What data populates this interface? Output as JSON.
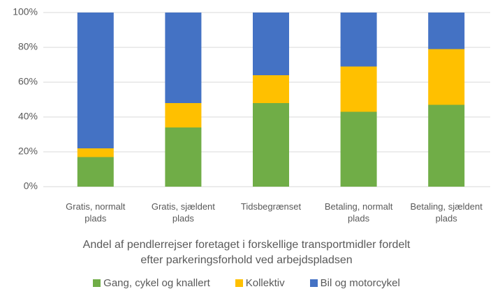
{
  "chart_data": {
    "type": "stacked_bar",
    "title": "Andel af pendlerrejser foretaget i forskellige transportmidler fordelt efter parkeringsforhold ved arbejdspladsen",
    "categories": [
      "Gratis, normalt plads",
      "Gratis, sjældent plads",
      "Tidsbegrænset",
      "Betaling, normalt plads",
      "Betaling, sjældent plads"
    ],
    "series": [
      {
        "name": "Gang, cykel og knallert",
        "color": "#70ad47",
        "values": [
          17,
          34,
          48,
          43,
          47
        ]
      },
      {
        "name": "Kollektiv",
        "color": "#ffc000",
        "values": [
          5,
          14,
          16,
          26,
          32
        ]
      },
      {
        "name": "Bil og motorcykel",
        "color": "#4472c4",
        "values": [
          78,
          52,
          36,
          31,
          21
        ]
      }
    ],
    "ylim": [
      0,
      100
    ],
    "yticks": [
      {
        "value": 0,
        "label": "0%"
      },
      {
        "value": 20,
        "label": "20%"
      },
      {
        "value": 40,
        "label": "40%"
      },
      {
        "value": 60,
        "label": "60%"
      },
      {
        "value": 80,
        "label": "80%"
      },
      {
        "value": 100,
        "label": "100%"
      }
    ],
    "grid": true,
    "legend": "bottom"
  }
}
